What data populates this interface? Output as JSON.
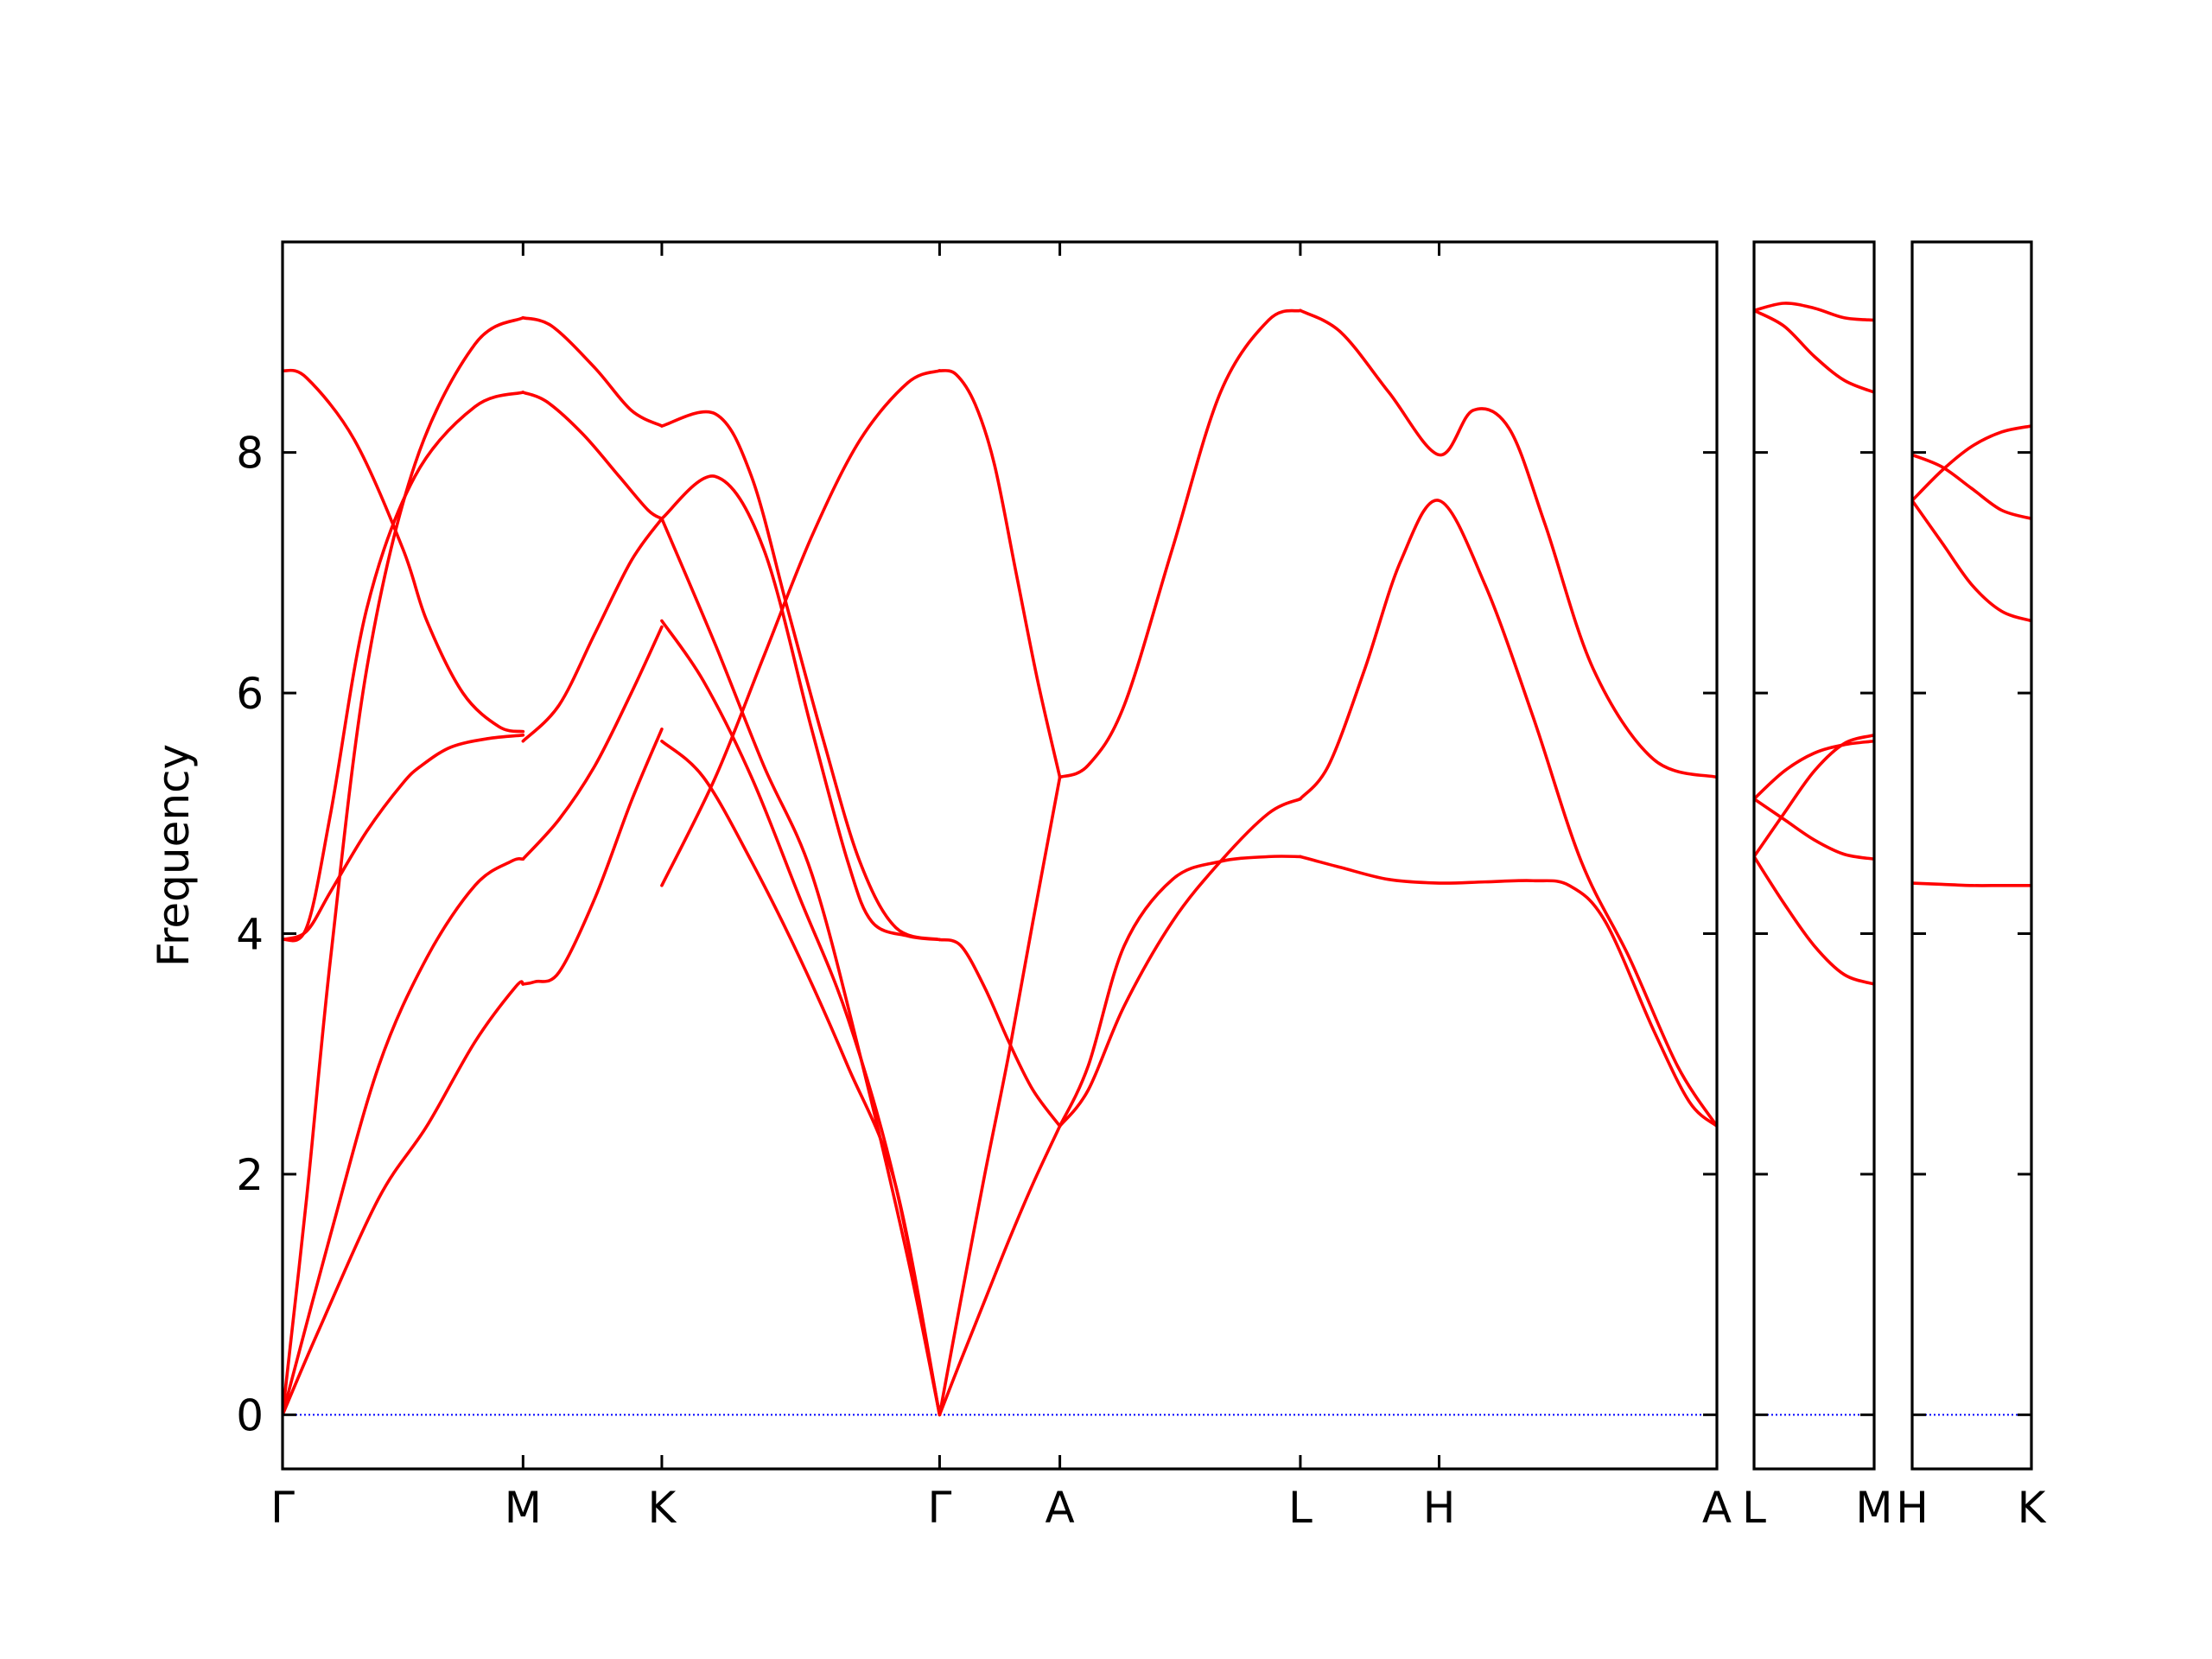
{
  "chart_data": {
    "type": "line",
    "ylabel": "Frequency",
    "yticks": [
      0,
      2,
      4,
      6,
      8
    ],
    "ylim": [
      -0.45,
      9.75
    ],
    "grid": false,
    "colors": {
      "band": "#ff0000",
      "zero_line": "#0000ff",
      "axes": "#000000"
    },
    "panels": [
      {
        "labels": [
          "Γ",
          "M",
          "K",
          "Γ",
          "A",
          "L",
          "H",
          "A"
        ],
        "x": [
          0,
          1.0,
          1.577,
          2.732,
          3.232,
          4.232,
          4.809,
          5.964
        ],
        "series": [
          {
            "x": [
              0,
              0.15,
              0.4,
              0.6,
              0.8,
              0.97,
              1.0
            ],
            "values": [
              0,
              0.7,
              1.8,
              2.4,
              3.1,
              3.56,
              3.58
            ]
          },
          {
            "x": [
              0,
              0.2,
              0.4,
              0.6,
              0.8,
              0.95,
              1.0
            ],
            "values": [
              0,
              1.5,
              2.9,
              3.8,
              4.4,
              4.6,
              4.62
            ]
          },
          {
            "x": [
              0,
              0.1,
              0.2,
              0.35,
              0.5,
              0.58,
              0.7,
              0.85,
              1.0
            ],
            "values": [
              3.95,
              4.02,
              4.35,
              4.85,
              5.25,
              5.4,
              5.55,
              5.62,
              5.65
            ]
          },
          {
            "x": [
              0,
              0.1,
              0.2,
              0.35,
              0.55,
              0.8,
              1.0
            ],
            "values": [
              3.95,
              4.05,
              5.0,
              6.7,
              7.8,
              8.38,
              8.5
            ]
          },
          {
            "x": [
              0,
              0.1,
              0.2,
              0.35,
              0.55,
              0.8,
              1.0
            ],
            "values": [
              0,
              1.8,
              3.8,
              6.2,
              7.9,
              8.9,
              9.12
            ]
          },
          {
            "x": [
              0,
              0.1,
              0.3,
              0.5,
              0.6,
              0.75,
              0.9,
              1.0
            ],
            "values": [
              8.68,
              8.62,
              8.1,
              7.2,
              6.6,
              6.0,
              5.72,
              5.68
            ]
          },
          {
            "x": [
              1.0,
              1.05,
              1.15,
              1.3,
              1.45,
              1.577
            ],
            "values": [
              3.58,
              3.6,
              3.68,
              4.3,
              5.1,
              5.7
            ]
          },
          {
            "x": [
              1.0,
              1.15,
              1.3,
              1.45,
              1.577
            ],
            "values": [
              4.62,
              4.95,
              5.4,
              6.0,
              6.55
            ]
          },
          {
            "x": [
              1.0,
              1.15,
              1.3,
              1.45,
              1.577
            ],
            "values": [
              5.6,
              5.9,
              6.5,
              7.1,
              7.45
            ]
          },
          {
            "x": [
              1.0,
              1.1,
              1.25,
              1.4,
              1.52,
              1.577
            ],
            "values": [
              8.5,
              8.42,
              8.15,
              7.8,
              7.52,
              7.45
            ]
          },
          {
            "x": [
              1.0,
              1.12,
              1.3,
              1.45,
              1.577
            ],
            "values": [
              9.12,
              9.05,
              8.7,
              8.35,
              8.22
            ]
          },
          {
            "x": [
              1.577,
              1.75,
              1.95,
              2.15,
              2.35,
              2.55,
              2.732
            ],
            "values": [
              6.6,
              6.1,
              5.3,
              4.3,
              3.3,
              1.9,
              0
            ]
          },
          {
            "x": [
              1.577,
              1.8,
              2.0,
              2.2,
              2.4,
              2.6,
              2.732
            ],
            "values": [
              7.45,
              6.4,
              5.4,
              4.5,
              3.0,
              1.3,
              0
            ]
          },
          {
            "x": [
              1.577,
              1.8,
              2.0,
              2.2,
              2.35,
              2.45,
              2.6,
              2.732
            ],
            "values": [
              7.45,
              7.8,
              7.2,
              5.7,
              4.6,
              4.1,
              3.98,
              3.95
            ]
          },
          {
            "x": [
              1.577,
              1.75,
              1.95,
              2.15,
              2.35,
              2.55,
              2.732
            ],
            "values": [
              5.6,
              5.3,
              4.6,
              3.8,
              2.9,
              1.9,
              0
            ]
          },
          {
            "x": [
              1.577,
              1.8,
              1.95,
              2.1,
              2.25,
              2.4,
              2.55,
              2.732
            ],
            "values": [
              8.22,
              8.32,
              7.8,
              6.7,
              5.6,
              4.6,
              4.05,
              3.95
            ]
          },
          {
            "x": [
              1.577,
              1.8,
              2.0,
              2.2,
              2.4,
              2.6,
              2.732
            ],
            "values": [
              4.4,
              5.3,
              6.3,
              7.3,
              8.1,
              8.58,
              8.68
            ]
          },
          {
            "x": [
              2.732,
              2.82,
              2.92,
              3.02,
              3.12,
              3.232
            ],
            "values": [
              0,
              0.45,
              0.95,
              1.45,
              1.92,
              2.4
            ]
          },
          {
            "x": [
              2.732,
              2.82,
              2.92,
              3.02,
              3.12,
              3.232
            ],
            "values": [
              0,
              0.95,
              2.0,
              3.0,
              4.1,
              5.3
            ]
          },
          {
            "x": [
              2.732,
              2.82,
              2.92,
              3.02,
              3.12,
              3.232
            ],
            "values": [
              3.95,
              3.9,
              3.55,
              3.1,
              2.7,
              2.4
            ]
          },
          {
            "x": [
              2.732,
              2.8,
              2.88,
              2.96,
              3.05,
              3.14,
              3.232
            ],
            "values": [
              8.68,
              8.65,
              8.4,
              7.9,
              7.0,
              6.1,
              5.3
            ]
          },
          {
            "x": [
              3.232,
              3.35,
              3.5,
              3.7,
              3.9,
              4.1,
              4.232
            ],
            "values": [
              5.3,
              5.4,
              5.9,
              7.2,
              8.5,
              9.1,
              9.18
            ]
          },
          {
            "x": [
              3.232,
              3.35,
              3.5,
              3.7,
              3.9,
              4.1,
              4.232
            ],
            "values": [
              2.4,
              2.7,
              3.4,
              4.1,
              4.6,
              5.0,
              5.12
            ]
          },
          {
            "x": [
              3.232,
              3.35,
              3.5,
              3.7,
              3.9,
              4.1,
              4.232
            ],
            "values": [
              2.4,
              2.9,
              3.9,
              4.45,
              4.6,
              4.64,
              4.64
            ]
          },
          {
            "x": [
              4.232,
              4.4,
              4.6,
              4.809,
              4.95,
              5.1,
              5.25,
              5.45,
              5.7,
              5.964
            ],
            "values": [
              9.18,
              9.0,
              8.5,
              7.98,
              8.35,
              8.2,
              7.4,
              6.2,
              5.45,
              5.3
            ]
          },
          {
            "x": [
              4.232,
              4.35,
              4.5,
              4.65,
              4.809,
              5.0,
              5.2,
              5.4,
              5.6,
              5.8,
              5.964
            ],
            "values": [
              5.12,
              5.4,
              6.2,
              7.1,
              7.6,
              6.9,
              5.8,
              4.6,
              3.8,
              2.9,
              2.4
            ]
          },
          {
            "x": [
              4.232,
              4.4,
              4.6,
              4.809,
              5.0,
              5.2,
              5.35,
              5.5,
              5.7,
              5.85,
              5.964
            ],
            "values": [
              4.64,
              4.55,
              4.45,
              4.42,
              4.43,
              4.44,
              4.4,
              4.1,
              3.2,
              2.6,
              2.4
            ]
          }
        ]
      },
      {
        "labels": [
          "L",
          "M"
        ],
        "x": [
          0,
          1
        ],
        "series": [
          {
            "x": [
              0,
              0.25,
              0.5,
              0.75,
              1.0
            ],
            "values": [
              9.18,
              9.24,
              9.2,
              9.12,
              9.1
            ]
          },
          {
            "x": [
              0,
              0.25,
              0.5,
              0.75,
              1.0
            ],
            "values": [
              9.18,
              9.05,
              8.8,
              8.6,
              8.5
            ]
          },
          {
            "x": [
              0,
              0.25,
              0.5,
              0.75,
              1.0
            ],
            "values": [
              5.12,
              5.35,
              5.5,
              5.57,
              5.6
            ]
          },
          {
            "x": [
              0,
              0.25,
              0.5,
              0.75,
              1.0
            ],
            "values": [
              5.12,
              4.95,
              4.78,
              4.66,
              4.62
            ]
          },
          {
            "x": [
              0,
              0.25,
              0.5,
              0.75,
              1.0
            ],
            "values": [
              4.64,
              5.0,
              5.35,
              5.58,
              5.65
            ]
          },
          {
            "x": [
              0,
              0.25,
              0.5,
              0.75,
              1.0
            ],
            "values": [
              4.64,
              4.25,
              3.9,
              3.66,
              3.58
            ]
          }
        ]
      },
      {
        "labels": [
          "H",
          "K"
        ],
        "x": [
          0,
          1
        ],
        "series": [
          {
            "x": [
              0,
              0.25,
              0.5,
              0.75,
              1.0
            ],
            "values": [
              7.98,
              7.88,
              7.7,
              7.52,
              7.45
            ]
          },
          {
            "x": [
              0,
              0.25,
              0.5,
              0.75,
              1.0
            ],
            "values": [
              7.6,
              7.85,
              8.05,
              8.17,
              8.22
            ]
          },
          {
            "x": [
              0,
              0.25,
              0.5,
              0.75,
              1.0
            ],
            "values": [
              7.6,
              7.25,
              6.9,
              6.68,
              6.6
            ]
          },
          {
            "x": [
              0,
              0.25,
              0.5,
              0.75,
              1.0
            ],
            "values": [
              4.42,
              4.41,
              4.4,
              4.4,
              4.4
            ]
          }
        ]
      }
    ]
  }
}
